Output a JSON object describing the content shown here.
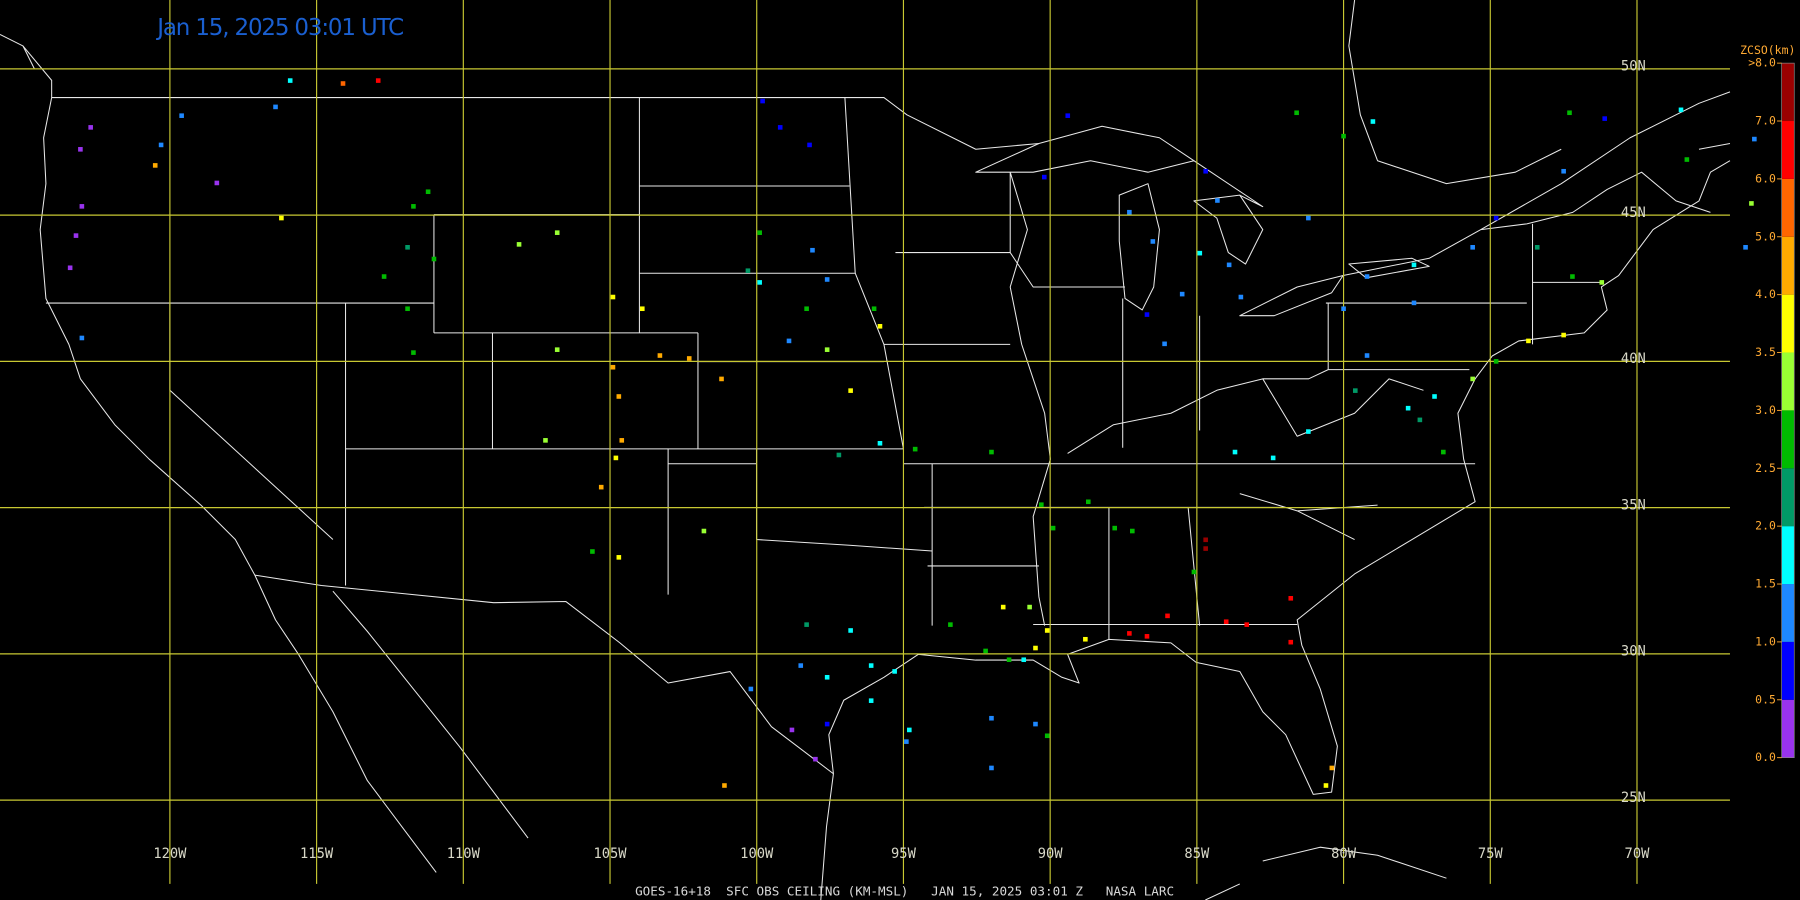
{
  "map": {
    "title": "Jan 15, 2025 03:01 UTC",
    "footer": "GOES-16+18  SFC OBS CEILING (KM-MSL)   JAN 15, 2025 03:01 Z   NASA LARC",
    "lat_ticks": [
      {
        "value": 50,
        "label": "50N"
      },
      {
        "value": 45,
        "label": "45N"
      },
      {
        "value": 40,
        "label": "40N"
      },
      {
        "value": 35,
        "label": "35N"
      },
      {
        "value": 30,
        "label": "30N"
      },
      {
        "value": 25,
        "label": "25N"
      }
    ],
    "lon_ticks": [
      {
        "value": -120,
        "label": "120W"
      },
      {
        "value": -115,
        "label": "115W"
      },
      {
        "value": -110,
        "label": "110W"
      },
      {
        "value": -105,
        "label": "105W"
      },
      {
        "value": -100,
        "label": "100W"
      },
      {
        "value": -95,
        "label": "95W"
      },
      {
        "value": -90,
        "label": "90W"
      },
      {
        "value": -85,
        "label": "85W"
      },
      {
        "value": -80,
        "label": "80W"
      },
      {
        "value": -75,
        "label": "75W"
      },
      {
        "value": -70,
        "label": "70W"
      }
    ],
    "grid_color": "#c8c832",
    "colorbar": {
      "title": "ZCSO(km)",
      "ticks": [
        {
          "value": 0,
          "label": "0.0"
        },
        {
          "value": 0.5,
          "label": "0.5"
        },
        {
          "value": 1,
          "label": "1.0"
        },
        {
          "value": 1.5,
          "label": "1.5"
        },
        {
          "value": 2,
          "label": "2.0"
        },
        {
          "value": 2.5,
          "label": "2.5"
        },
        {
          "value": 3,
          "label": "3.0"
        },
        {
          "value": 3.5,
          "label": "3.5"
        },
        {
          "value": 4,
          "label": "4.0"
        },
        {
          "value": 5,
          "label": "5.0"
        },
        {
          "value": 6,
          "label": "6.0"
        },
        {
          "value": 7,
          "label": "7.0"
        },
        {
          "value": 8,
          "label": ">8.0"
        }
      ],
      "colors": [
        "#9933ee",
        "#0000ff",
        "#1e88ff",
        "#00ffff",
        "#009966",
        "#00bb00",
        "#99ff33",
        "#ffff00",
        "#ffaa00",
        "#ff6600",
        "#ff0000",
        "#990000"
      ]
    },
    "stations": [
      [
        -123.05,
        47.25,
        0.3
      ],
      [
        -122.7,
        48.0,
        0.3
      ],
      [
        -123.0,
        45.3,
        0.3
      ],
      [
        -123.2,
        44.3,
        0.4
      ],
      [
        -123.4,
        43.2,
        0.3
      ],
      [
        -120.5,
        46.7,
        4.5
      ],
      [
        -118.4,
        46.1,
        0.2
      ],
      [
        -120.3,
        47.4,
        1.2
      ],
      [
        -119.6,
        48.4,
        1.2
      ],
      [
        -116.4,
        48.7,
        1.2
      ],
      [
        -115.9,
        49.6,
        1.8
      ],
      [
        -114.1,
        49.5,
        5.5
      ],
      [
        -112.9,
        49.6,
        6.5
      ],
      [
        -116.2,
        44.9,
        3.8
      ],
      [
        -123.0,
        40.8,
        1.2
      ],
      [
        -111.7,
        45.3,
        2.7
      ],
      [
        -111.2,
        45.8,
        2.7
      ],
      [
        -111.9,
        43.9,
        2.2
      ],
      [
        -112.7,
        42.9,
        2.7
      ],
      [
        -111.9,
        41.8,
        2.7
      ],
      [
        -111.7,
        40.3,
        2.7
      ],
      [
        -108.1,
        44.0,
        3.2
      ],
      [
        -106.8,
        44.4,
        3.2
      ],
      [
        -106.8,
        40.4,
        3.2
      ],
      [
        -104.9,
        39.8,
        4.5
      ],
      [
        -104.7,
        38.8,
        4.5
      ],
      [
        -103.3,
        40.2,
        4.5
      ],
      [
        -102.3,
        40.1,
        4.5
      ],
      [
        -101.2,
        39.4,
        4.5
      ],
      [
        -104.9,
        42.2,
        3.8
      ],
      [
        -103.9,
        41.8,
        3.8
      ],
      [
        -107.2,
        37.3,
        3.2
      ],
      [
        -104.6,
        37.3,
        4.5
      ],
      [
        -104.8,
        36.7,
        3.8
      ],
      [
        -105.3,
        35.7,
        4.5
      ],
      [
        -104.7,
        33.3,
        3.8
      ],
      [
        -105.6,
        33.5,
        2.7
      ],
      [
        -101.8,
        34.2,
        3.2
      ],
      [
        -101.1,
        25.5,
        4.5
      ],
      [
        -99.8,
        48.9,
        0.8
      ],
      [
        -99.2,
        48.0,
        0.8
      ],
      [
        -98.2,
        47.4,
        0.8
      ],
      [
        -99.9,
        44.4,
        2.7
      ],
      [
        -98.1,
        43.8,
        1.2
      ],
      [
        -99.9,
        42.7,
        1.8
      ],
      [
        -98.3,
        41.8,
        2.7
      ],
      [
        -98.9,
        40.7,
        1.2
      ],
      [
        -97.6,
        40.4,
        3.2
      ],
      [
        -96.8,
        39.0,
        3.8
      ],
      [
        -95.8,
        41.2,
        3.8
      ],
      [
        -96.0,
        41.8,
        2.7
      ],
      [
        -97.6,
        42.8,
        1.2
      ],
      [
        -97.2,
        36.8,
        2.2
      ],
      [
        -95.8,
        37.2,
        1.8
      ],
      [
        -94.6,
        37.0,
        2.7
      ],
      [
        -92.0,
        36.9,
        2.7
      ],
      [
        -100.3,
        43.1,
        2.2
      ],
      [
        -98.3,
        31.0,
        2.2
      ],
      [
        -96.8,
        30.8,
        1.8
      ],
      [
        -98.5,
        29.6,
        1.2
      ],
      [
        -97.6,
        29.2,
        1.8
      ],
      [
        -96.1,
        29.6,
        1.8
      ],
      [
        -95.3,
        29.4,
        1.8
      ],
      [
        -98.8,
        27.4,
        0.3
      ],
      [
        -97.6,
        27.6,
        0.8
      ],
      [
        -98.0,
        26.4,
        0.3
      ],
      [
        -100.2,
        28.8,
        1.2
      ],
      [
        -96.1,
        28.4,
        1.8
      ],
      [
        -93.4,
        31.0,
        2.7
      ],
      [
        -92.2,
        30.1,
        2.7
      ],
      [
        -91.4,
        29.8,
        2.7
      ],
      [
        -90.9,
        29.8,
        1.8
      ],
      [
        -90.5,
        30.2,
        3.8
      ],
      [
        -90.1,
        30.8,
        3.8
      ],
      [
        -91.6,
        31.6,
        3.8
      ],
      [
        -90.7,
        31.6,
        3.2
      ],
      [
        -88.8,
        30.5,
        3.8
      ],
      [
        -87.3,
        30.7,
        6.5
      ],
      [
        -86.7,
        30.6,
        6.5
      ],
      [
        -86.0,
        31.3,
        6.5
      ],
      [
        -84.0,
        31.1,
        6.5
      ],
      [
        -83.3,
        31.0,
        6.5
      ],
      [
        -81.8,
        31.9,
        6.5
      ],
      [
        -81.8,
        30.4,
        6.5
      ],
      [
        -84.7,
        33.9,
        7.5
      ],
      [
        -84.7,
        33.6,
        7.5
      ],
      [
        -85.1,
        32.8,
        2.7
      ],
      [
        -80.4,
        26.1,
        4.5
      ],
      [
        -80.6,
        25.5,
        3.8
      ],
      [
        -90.3,
        35.1,
        2.7
      ],
      [
        -89.9,
        34.3,
        2.7
      ],
      [
        -88.7,
        35.2,
        2.7
      ],
      [
        -87.8,
        34.3,
        2.7
      ],
      [
        -87.2,
        34.2,
        2.7
      ],
      [
        -92.0,
        27.8,
        1.2
      ],
      [
        -92.0,
        26.1,
        1.2
      ],
      [
        -90.5,
        27.6,
        1.2
      ],
      [
        -90.1,
        27.2,
        2.7
      ],
      [
        -94.8,
        27.4,
        1.8
      ],
      [
        -94.9,
        27.0,
        1.2
      ],
      [
        -89.4,
        48.4,
        0.8
      ],
      [
        -90.2,
        46.3,
        0.8
      ],
      [
        -87.3,
        45.1,
        1.2
      ],
      [
        -84.7,
        46.5,
        0.8
      ],
      [
        -84.3,
        45.5,
        1.2
      ],
      [
        -86.5,
        44.1,
        1.2
      ],
      [
        -84.9,
        43.7,
        1.8
      ],
      [
        -83.9,
        43.3,
        1.2
      ],
      [
        -83.5,
        42.2,
        1.2
      ],
      [
        -86.7,
        41.6,
        0.8
      ],
      [
        -86.1,
        40.6,
        1.2
      ],
      [
        -85.5,
        42.3,
        1.2
      ],
      [
        -81.6,
        48.5,
        2.7
      ],
      [
        -79.0,
        48.2,
        1.8
      ],
      [
        -80.0,
        41.8,
        1.2
      ],
      [
        -81.2,
        44.9,
        1.2
      ],
      [
        -79.2,
        42.9,
        1.2
      ],
      [
        -77.6,
        43.3,
        1.8
      ],
      [
        -75.6,
        43.9,
        1.2
      ],
      [
        -74.8,
        44.9,
        0.8
      ],
      [
        -72.5,
        46.5,
        1.2
      ],
      [
        -71.1,
        48.3,
        0.8
      ],
      [
        -72.3,
        48.5,
        2.7
      ],
      [
        -68.5,
        48.6,
        1.8
      ],
      [
        -68.3,
        46.9,
        2.7
      ],
      [
        -73.4,
        43.9,
        2.2
      ],
      [
        -72.2,
        42.9,
        2.7
      ],
      [
        -71.2,
        42.7,
        3.2
      ],
      [
        -73.7,
        40.7,
        3.8
      ],
      [
        -72.5,
        40.9,
        3.8
      ],
      [
        -74.8,
        40.0,
        2.7
      ],
      [
        -75.6,
        39.4,
        3.2
      ],
      [
        -76.9,
        38.8,
        1.8
      ],
      [
        -77.8,
        38.4,
        1.8
      ],
      [
        -77.4,
        38.0,
        2.2
      ],
      [
        -76.6,
        36.9,
        2.7
      ],
      [
        -81.2,
        37.6,
        1.8
      ],
      [
        -82.4,
        36.7,
        1.8
      ],
      [
        -79.6,
        39.0,
        2.2
      ],
      [
        -79.2,
        40.2,
        1.2
      ],
      [
        -77.6,
        42.0,
        1.2
      ],
      [
        -66.0,
        47.6,
        1.2
      ],
      [
        -66.1,
        45.4,
        3.2
      ],
      [
        -66.3,
        43.9,
        1.2
      ],
      [
        -83.7,
        36.9,
        1.8
      ],
      [
        -80.0,
        47.7,
        2.7
      ],
      [
        -111.0,
        43.5,
        2.7
      ]
    ]
  }
}
